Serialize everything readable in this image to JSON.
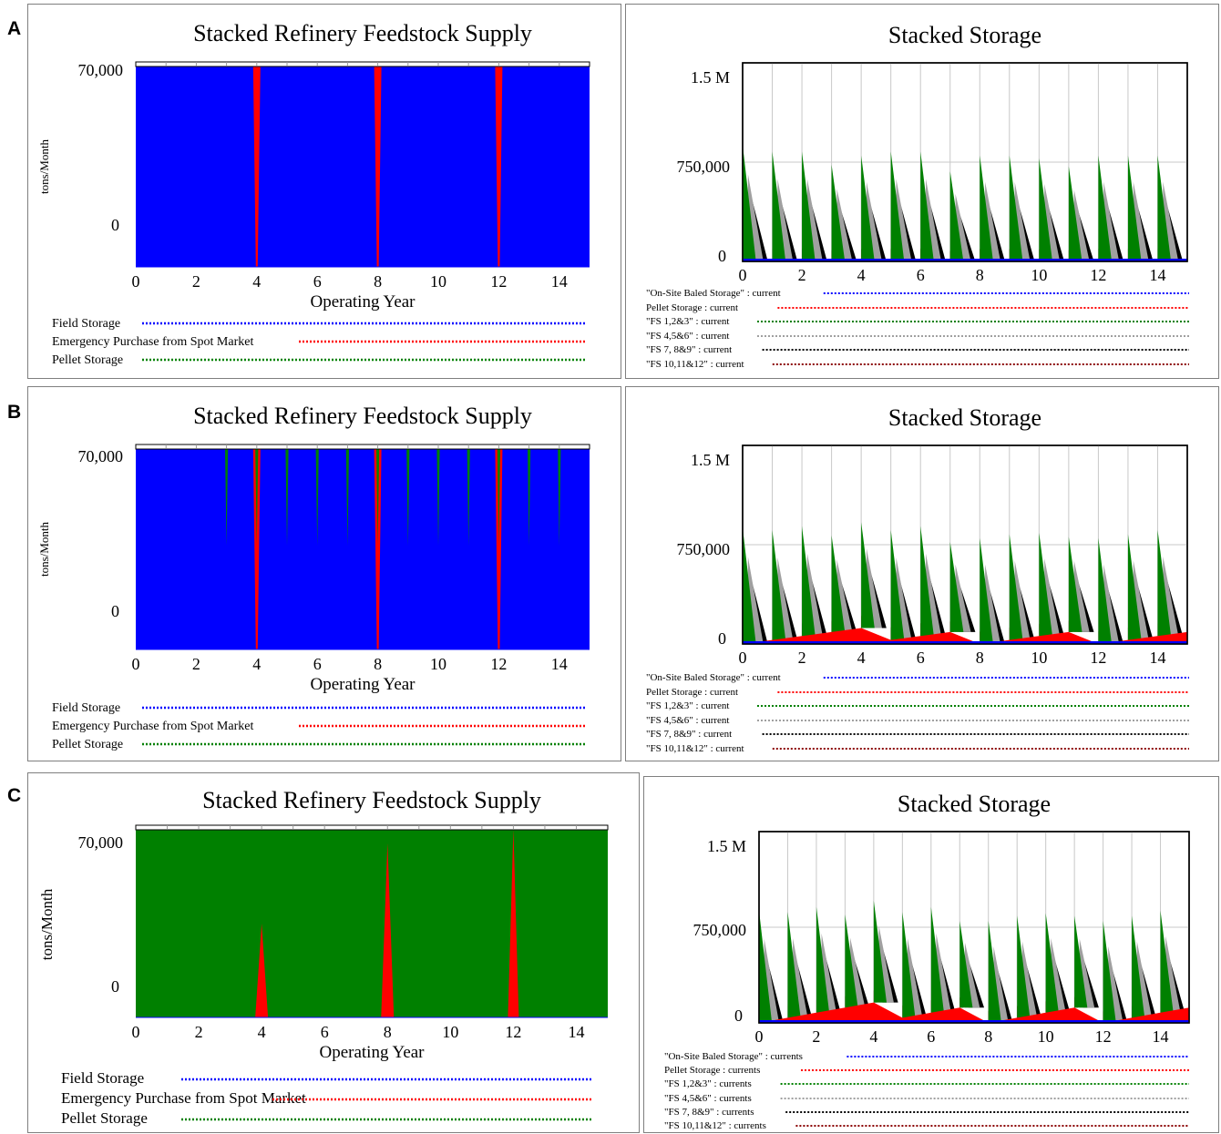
{
  "panels": [
    {
      "label": "A"
    },
    {
      "label": "B"
    },
    {
      "label": "C"
    }
  ],
  "colors": {
    "field_storage": "#0000ff",
    "emergency_purchase": "#ff0000",
    "pellet_storage": "#008000",
    "on_site_baled": "#0000ff",
    "fs_123": "#008000",
    "fs_456": "#a0a0a0",
    "fs_789": "#000000",
    "fs_101112": "#8b0000"
  },
  "chart_data": [
    {
      "type": "area",
      "panel": "A",
      "title": "Stacked Refinery Feedstock Supply",
      "xlabel": "Operating Year",
      "ylabel": "tons/Month",
      "x_ticks": [
        "0",
        "2",
        "4",
        "6",
        "8",
        "10",
        "12",
        "14"
      ],
      "y_ticks": [
        "0",
        "70,000"
      ],
      "xlim": [
        0,
        15
      ],
      "stacked": true,
      "legend": [
        "Field Storage",
        "Emergency Purchase from Spot Market",
        "Pellet Storage"
      ],
      "series": [
        {
          "name": "Field Storage",
          "description": "fills supply at 70,000 except dips",
          "values_at": {
            "x": [
              0,
              15
            ],
            "y": [
              70000,
              70000
            ]
          }
        },
        {
          "name": "Emergency Purchase from Spot Market",
          "spikes": [
            {
              "x": 4,
              "peak": 70000
            },
            {
              "x": 8,
              "peak": 70000
            },
            {
              "x": 12,
              "peak": 70000
            }
          ]
        },
        {
          "name": "Pellet Storage",
          "spikes": []
        }
      ]
    },
    {
      "type": "area",
      "panel": "A",
      "title": "Stacked Storage",
      "x_ticks": [
        "0",
        "2",
        "4",
        "6",
        "8",
        "10",
        "12",
        "14"
      ],
      "y_ticks": [
        "0",
        "750,000",
        "1.5 M"
      ],
      "xlim": [
        0,
        15
      ],
      "ylim": [
        0,
        1500000
      ],
      "stacked": true,
      "legend": [
        "\"On-Site Baled Storage\" : current",
        "Pellet Storage : current",
        "\"FS 1,2&3\" : current",
        "\"FS 4,5&6\" : current",
        "\"FS 7, 8&9\" : current",
        "\"FS 10,11&12\" : current"
      ],
      "annual_peaks": [
        880000,
        830000,
        830000,
        730000,
        800000,
        830000,
        830000,
        680000,
        800000,
        800000,
        780000,
        720000,
        800000,
        800000,
        800000
      ],
      "pellet_storage_level": [
        0,
        0,
        0,
        0,
        0,
        0,
        0,
        0,
        0,
        0,
        0,
        0,
        0,
        0,
        0,
        0
      ]
    },
    {
      "type": "area",
      "panel": "B",
      "title": "Stacked Refinery Feedstock Supply",
      "xlabel": "Operating Year",
      "ylabel": "tons/Month",
      "x_ticks": [
        "0",
        "2",
        "4",
        "6",
        "8",
        "10",
        "12",
        "14"
      ],
      "y_ticks": [
        "0",
        "70,000"
      ],
      "xlim": [
        0,
        15
      ],
      "stacked": true,
      "legend": [
        "Field Storage",
        "Emergency Purchase from Spot Market",
        "Pellet Storage"
      ],
      "series": [
        {
          "name": "Field Storage",
          "values_at": {
            "x": [
              0,
              15
            ],
            "y": [
              70000,
              70000
            ]
          }
        },
        {
          "name": "Emergency Purchase from Spot Market",
          "spikes": [
            {
              "x": 4,
              "peak": 70000
            },
            {
              "x": 8,
              "peak": 70000
            },
            {
              "x": 12,
              "peak": 70000
            }
          ]
        },
        {
          "name": "Pellet Storage",
          "spikes": [
            {
              "x": 3,
              "peak": 45000
            },
            {
              "x": 4,
              "peak": 45000
            },
            {
              "x": 5,
              "peak": 45000
            },
            {
              "x": 6,
              "peak": 45000
            },
            {
              "x": 7,
              "peak": 45000
            },
            {
              "x": 8,
              "peak": 45000
            },
            {
              "x": 9,
              "peak": 45000
            },
            {
              "x": 10,
              "peak": 45000
            },
            {
              "x": 11,
              "peak": 45000
            },
            {
              "x": 12,
              "peak": 45000
            },
            {
              "x": 13,
              "peak": 45000
            },
            {
              "x": 14,
              "peak": 45000
            }
          ]
        }
      ]
    },
    {
      "type": "area",
      "panel": "B",
      "title": "Stacked Storage",
      "x_ticks": [
        "0",
        "2",
        "4",
        "6",
        "8",
        "10",
        "12",
        "14"
      ],
      "y_ticks": [
        "0",
        "750,000",
        "1.5 M"
      ],
      "xlim": [
        0,
        15
      ],
      "ylim": [
        0,
        1500000
      ],
      "stacked": true,
      "legend": [
        "\"On-Site Baled Storage\" : current",
        "Pellet Storage : current",
        "\"FS 1,2&3\" : current",
        "\"FS 4,5&6\" : current",
        "\"FS 7, 8&9\" : current",
        "\"FS 10,11&12\" : current"
      ],
      "annual_peaks": [
        880000,
        830000,
        830000,
        730000,
        800000,
        830000,
        830000,
        680000,
        800000,
        800000,
        780000,
        720000,
        800000,
        800000,
        800000
      ],
      "pellet_storage_level": [
        0,
        30000,
        60000,
        90000,
        120000,
        30000,
        60000,
        90000,
        0,
        30000,
        60000,
        90000,
        0,
        30000,
        60000,
        90000
      ]
    },
    {
      "type": "area",
      "panel": "C",
      "title": "Stacked Refinery Feedstock Supply",
      "xlabel": "Operating Year",
      "ylabel": "tons/Month",
      "x_ticks": [
        "0",
        "2",
        "4",
        "6",
        "8",
        "10",
        "12",
        "14"
      ],
      "y_ticks": [
        "0",
        "70,000"
      ],
      "xlim": [
        0,
        15
      ],
      "stacked": true,
      "legend": [
        "Field Storage",
        "Emergency Purchase from Spot Market",
        "Pellet Storage"
      ],
      "series": [
        {
          "name": "Pellet Storage",
          "values_at": {
            "x": [
              0,
              15
            ],
            "y": [
              70000,
              70000
            ]
          }
        },
        {
          "name": "Emergency Purchase from Spot Market",
          "spikes": [
            {
              "x": 4,
              "peak": 35000
            },
            {
              "x": 8,
              "peak": 65000
            },
            {
              "x": 12,
              "peak": 70000
            }
          ]
        },
        {
          "name": "Field Storage",
          "spikes": []
        }
      ]
    },
    {
      "type": "area",
      "panel": "C",
      "title": "Stacked Storage",
      "x_ticks": [
        "0",
        "2",
        "4",
        "6",
        "8",
        "10",
        "12",
        "14"
      ],
      "y_ticks": [
        "0",
        "750,000",
        "1.5 M"
      ],
      "xlim": [
        0,
        15
      ],
      "ylim": [
        0,
        1500000
      ],
      "stacked": true,
      "legend": [
        "\"On-Site Baled Storage\" : currents",
        "Pellet Storage : currents",
        "\"FS 1,2&3\" : currents",
        "\"FS 4,5&6\" : currents",
        "\"FS 7, 8&9\" : currents",
        "\"FS 10,11&12\" : currents"
      ],
      "annual_peaks": [
        880000,
        830000,
        830000,
        730000,
        800000,
        830000,
        830000,
        680000,
        800000,
        800000,
        780000,
        720000,
        800000,
        800000,
        800000
      ],
      "pellet_storage_level": [
        0,
        40000,
        80000,
        120000,
        160000,
        40000,
        80000,
        120000,
        0,
        40000,
        80000,
        120000,
        0,
        40000,
        80000,
        120000
      ]
    }
  ]
}
